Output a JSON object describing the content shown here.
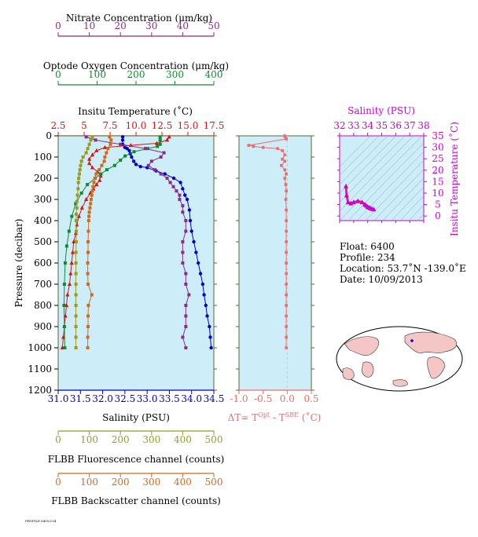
{
  "colors": {
    "nitrate": "#8b2c8b",
    "oxygen": "#118a2e",
    "temperature": "#e01010",
    "salinity": "#0000cc",
    "fluorescence": "#9a9a20",
    "backscatter": "#d2691e",
    "delta": "#f06a6a",
    "ts_axis": "#cc00cc",
    "plot_bg": "#cdeef8",
    "axis_dark": "#556b2f"
  },
  "labels": {
    "nitrate_title": "Nitrate Concentration (μm/kg)",
    "oxygen_title": "Optode Oxygen Concentration (μm/kg)",
    "temp_title": "Insitu Temperature (˚C)",
    "pressure_title": "Pressure (decibar)",
    "salinity_title": "Salinity (PSU)",
    "fluor_title": "FLBB Fluorescence channel (counts)",
    "backscatter_title": "FLBB Backscatter channel (counts)",
    "delta_title": "ΔT= T",
    "delta_sup1": "Opt",
    "delta_mid": " - T",
    "delta_sup2": "SBE",
    "delta_unit": " (˚C)",
    "ts_top_title": "Salinity (PSU)",
    "ts_right_title": "Insitu Temperature (˚C)",
    "footer": "PROFILE 6400/234"
  },
  "info": {
    "float": "Float:  6400",
    "profile": "Profile:  234",
    "location": "Location:  53.7˚N  -139.0˚E",
    "date": "Date:  10/09/2013"
  },
  "chart_data": [
    {
      "type": "line",
      "panel": "profiles",
      "y_label": "Pressure (decibar)",
      "ylim": [
        1200,
        0
      ],
      "y_ticks": [
        "0",
        "100",
        "200",
        "300",
        "400",
        "500",
        "600",
        "700",
        "800",
        "900",
        "1000",
        "1100",
        "1200"
      ],
      "axes": {
        "nitrate": {
          "label": "Nitrate Concentration (μm/kg)",
          "lim": [
            0,
            50
          ],
          "ticks": [
            "0",
            "10",
            "20",
            "30",
            "40",
            "50"
          ]
        },
        "oxygen": {
          "label": "Optode Oxygen Concentration (μm/kg)",
          "lim": [
            0,
            400
          ],
          "ticks": [
            "0",
            "100",
            "200",
            "300",
            "400"
          ]
        },
        "temperature": {
          "label": "Insitu Temperature (˚C)",
          "lim": [
            2.5,
            17.5
          ],
          "ticks": [
            "2.5",
            "5",
            "7.5",
            "10.0",
            "12.5",
            "15.0",
            "17.5"
          ]
        },
        "salinity": {
          "label": "Salinity (PSU)",
          "lim": [
            31.0,
            34.5
          ],
          "ticks": [
            "31.0",
            "31.5",
            "32.0",
            "32.5",
            "33.0",
            "33.5",
            "34.0",
            "34.5"
          ]
        },
        "fluorescence": {
          "label": "FLBB Fluorescence channel (counts)",
          "lim": [
            0,
            500
          ],
          "ticks": [
            "0",
            "100",
            "200",
            "300",
            "400",
            "500"
          ]
        },
        "backscatter": {
          "label": "FLBB Backscatter channel (counts)",
          "lim": [
            0,
            500
          ],
          "ticks": [
            "0",
            "100",
            "200",
            "300",
            "400",
            "500"
          ]
        }
      },
      "series": [
        {
          "key": "salinity",
          "axis": "salinity",
          "marker": "circle",
          "points": [
            [
              32.45,
              5
            ],
            [
              32.45,
              20
            ],
            [
              32.45,
              40
            ],
            [
              32.5,
              55
            ],
            [
              32.55,
              60
            ],
            [
              32.6,
              70
            ],
            [
              32.62,
              85
            ],
            [
              32.65,
              100
            ],
            [
              32.7,
              120
            ],
            [
              32.75,
              135
            ],
            [
              32.85,
              145
            ],
            [
              33.0,
              150
            ],
            [
              33.2,
              165
            ],
            [
              33.4,
              180
            ],
            [
              33.6,
              200
            ],
            [
              33.75,
              220
            ],
            [
              33.8,
              250
            ],
            [
              33.85,
              280
            ],
            [
              33.9,
              300
            ],
            [
              33.95,
              350
            ],
            [
              33.97,
              400
            ],
            [
              34.0,
              450
            ],
            [
              34.05,
              500
            ],
            [
              34.1,
              550
            ],
            [
              34.15,
              600
            ],
            [
              34.2,
              650
            ],
            [
              34.25,
              700
            ],
            [
              34.28,
              750
            ],
            [
              34.32,
              800
            ],
            [
              34.35,
              850
            ],
            [
              34.4,
              900
            ],
            [
              34.42,
              950
            ],
            [
              34.44,
              1000
            ]
          ]
        },
        {
          "key": "temperature",
          "axis": "temperature",
          "marker": "triangle",
          "points": [
            [
              13.2,
              5
            ],
            [
              13.0,
              20
            ],
            [
              12.0,
              35
            ],
            [
              9.5,
              45
            ],
            [
              7.0,
              55
            ],
            [
              6.2,
              70
            ],
            [
              5.8,
              90
            ],
            [
              5.5,
              110
            ],
            [
              5.5,
              130
            ],
            [
              5.8,
              150
            ],
            [
              6.3,
              170
            ],
            [
              6.6,
              190
            ],
            [
              6.5,
              210
            ],
            [
              6.2,
              230
            ],
            [
              5.9,
              250
            ],
            [
              5.6,
              270
            ],
            [
              5.2,
              300
            ],
            [
              4.8,
              340
            ],
            [
              4.5,
              380
            ],
            [
              4.3,
              420
            ],
            [
              4.2,
              460
            ],
            [
              4.0,
              500
            ],
            [
              3.9,
              550
            ],
            [
              3.8,
              600
            ],
            [
              3.7,
              650
            ],
            [
              3.6,
              700
            ],
            [
              3.4,
              750
            ],
            [
              3.3,
              800
            ],
            [
              3.2,
              850
            ],
            [
              3.1,
              900
            ],
            [
              3.0,
              950
            ],
            [
              2.9,
              1000
            ]
          ]
        },
        {
          "key": "oxygen",
          "axis": "oxygen",
          "marker": "square",
          "points": [
            [
              262,
              5
            ],
            [
              262,
              20
            ],
            [
              262,
              40
            ],
            [
              255,
              50
            ],
            [
              230,
              60
            ],
            [
              195,
              75
            ],
            [
              172,
              95
            ],
            [
              160,
              115
            ],
            [
              145,
              140
            ],
            [
              125,
              160
            ],
            [
              110,
              180
            ],
            [
              95,
              200
            ],
            [
              75,
              230
            ],
            [
              60,
              270
            ],
            [
              45,
              320
            ],
            [
              35,
              380
            ],
            [
              28,
              450
            ],
            [
              22,
              520
            ],
            [
              18,
              600
            ],
            [
              16,
              700
            ],
            [
              15,
              800
            ],
            [
              16,
              900
            ],
            [
              17,
              1000
            ]
          ]
        },
        {
          "key": "nitrate",
          "axis": "nitrate",
          "marker": "square",
          "points": [
            [
              9,
              5
            ],
            [
              12,
              20
            ],
            [
              20,
              40
            ],
            [
              28,
              60
            ],
            [
              34,
              80
            ],
            [
              33,
              100
            ],
            [
              30,
              120
            ],
            [
              29,
              140
            ],
            [
              31,
              160
            ],
            [
              33,
              180
            ],
            [
              35,
              200
            ],
            [
              36,
              220
            ],
            [
              37,
              240
            ],
            [
              38,
              260
            ],
            [
              39,
              280
            ],
            [
              39,
              300
            ],
            [
              40,
              330
            ],
            [
              40,
              360
            ],
            [
              41,
              400
            ],
            [
              41,
              450
            ],
            [
              40,
              500
            ],
            [
              40,
              550
            ],
            [
              40,
              600
            ],
            [
              41,
              650
            ],
            [
              41,
              700
            ],
            [
              42,
              750
            ],
            [
              41,
              800
            ],
            [
              41,
              850
            ],
            [
              41,
              900
            ],
            [
              40,
              950
            ],
            [
              41,
              1000
            ]
          ]
        },
        {
          "key": "fluorescence",
          "axis": "fluorescence",
          "marker": "square",
          "points": [
            [
              110,
              5
            ],
            [
              105,
              20
            ],
            [
              100,
              40
            ],
            [
              95,
              60
            ],
            [
              90,
              80
            ],
            [
              80,
              100
            ],
            [
              75,
              120
            ],
            [
              72,
              140
            ],
            [
              70,
              160
            ],
            [
              68,
              180
            ],
            [
              66,
              200
            ],
            [
              65,
              220
            ],
            [
              64,
              250
            ],
            [
              62,
              280
            ],
            [
              60,
              310
            ],
            [
              60,
              340
            ],
            [
              58,
              370
            ],
            [
              58,
              400
            ],
            [
              58,
              450
            ],
            [
              58,
              500
            ],
            [
              57,
              550
            ],
            [
              57,
              600
            ],
            [
              57,
              650
            ],
            [
              57,
              700
            ],
            [
              57,
              750
            ],
            [
              57,
              800
            ],
            [
              57,
              850
            ],
            [
              57,
              900
            ],
            [
              57,
              950
            ],
            [
              57,
              1000
            ]
          ]
        },
        {
          "key": "backscatter",
          "axis": "backscatter",
          "marker": "square",
          "points": [
            [
              165,
              5
            ],
            [
              170,
              20
            ],
            [
              168,
              40
            ],
            [
              160,
              60
            ],
            [
              155,
              80
            ],
            [
              150,
              100
            ],
            [
              148,
              120
            ],
            [
              140,
              140
            ],
            [
              132,
              160
            ],
            [
              122,
              180
            ],
            [
              118,
              200
            ],
            [
              115,
              220
            ],
            [
              112,
              240
            ],
            [
              110,
              260
            ],
            [
              108,
              280
            ],
            [
              106,
              300
            ],
            [
              104,
              320
            ],
            [
              102,
              340
            ],
            [
              100,
              360
            ],
            [
              99,
              380
            ],
            [
              98,
              400
            ],
            [
              97,
              450
            ],
            [
              96,
              500
            ],
            [
              96,
              550
            ],
            [
              95,
              600
            ],
            [
              95,
              650
            ],
            [
              96,
              700
            ],
            [
              108,
              750
            ],
            [
              97,
              800
            ],
            [
              96,
              850
            ],
            [
              96,
              900
            ],
            [
              95,
              950
            ],
            [
              95,
              1000
            ]
          ]
        }
      ]
    },
    {
      "type": "line",
      "panel": "delta",
      "xlabel": "ΔT= TOpt - TSBE (˚C)",
      "xlim": [
        -1.0,
        0.5
      ],
      "x_ticks": [
        "-1.0",
        "-0.5",
        "0.0",
        "0.5"
      ],
      "ylim": [
        1200,
        0
      ],
      "series": [
        {
          "name": "ΔT",
          "points": [
            [
              -0.05,
              0
            ],
            [
              -0.04,
              5
            ],
            [
              -0.02,
              15
            ],
            [
              -0.8,
              45
            ],
            [
              -0.7,
              50
            ],
            [
              -0.5,
              55
            ],
            [
              -0.2,
              60
            ],
            [
              -0.1,
              70
            ],
            [
              -0.05,
              90
            ],
            [
              -0.1,
              110
            ],
            [
              -0.05,
              120
            ],
            [
              -0.12,
              140
            ],
            [
              -0.05,
              160
            ],
            [
              -0.02,
              180
            ],
            [
              -0.05,
              200
            ],
            [
              -0.03,
              230
            ],
            [
              -0.02,
              260
            ],
            [
              -0.03,
              300
            ],
            [
              -0.02,
              350
            ],
            [
              -0.02,
              400
            ],
            [
              -0.02,
              450
            ],
            [
              -0.02,
              500
            ],
            [
              -0.02,
              550
            ],
            [
              -0.02,
              600
            ],
            [
              -0.02,
              650
            ],
            [
              -0.02,
              700
            ],
            [
              -0.02,
              750
            ],
            [
              -0.02,
              800
            ],
            [
              -0.02,
              850
            ],
            [
              -0.02,
              900
            ],
            [
              -0.02,
              950
            ],
            [
              -0.02,
              1000
            ]
          ]
        }
      ]
    },
    {
      "type": "scatter",
      "panel": "ts",
      "xlabel": "Salinity (PSU)",
      "ylabel": "Insitu Temperature (˚C)",
      "xlim": [
        32,
        38
      ],
      "ylim": [
        -2,
        35
      ],
      "x_ticks": [
        "32",
        "33",
        "34",
        "35",
        "36",
        "37",
        "38"
      ],
      "y_ticks": [
        "0",
        "5",
        "10",
        "15",
        "20",
        "25",
        "30",
        "35"
      ],
      "points": [
        [
          32.45,
          13
        ],
        [
          32.5,
          9
        ],
        [
          32.6,
          6
        ],
        [
          32.8,
          5.5
        ],
        [
          33.0,
          6
        ],
        [
          33.3,
          6.5
        ],
        [
          33.6,
          6
        ],
        [
          33.8,
          5
        ],
        [
          33.9,
          4.5
        ],
        [
          34.0,
          4
        ],
        [
          34.1,
          3.7
        ],
        [
          34.2,
          3.4
        ],
        [
          34.3,
          3.1
        ],
        [
          34.44,
          2.9
        ]
      ]
    }
  ]
}
